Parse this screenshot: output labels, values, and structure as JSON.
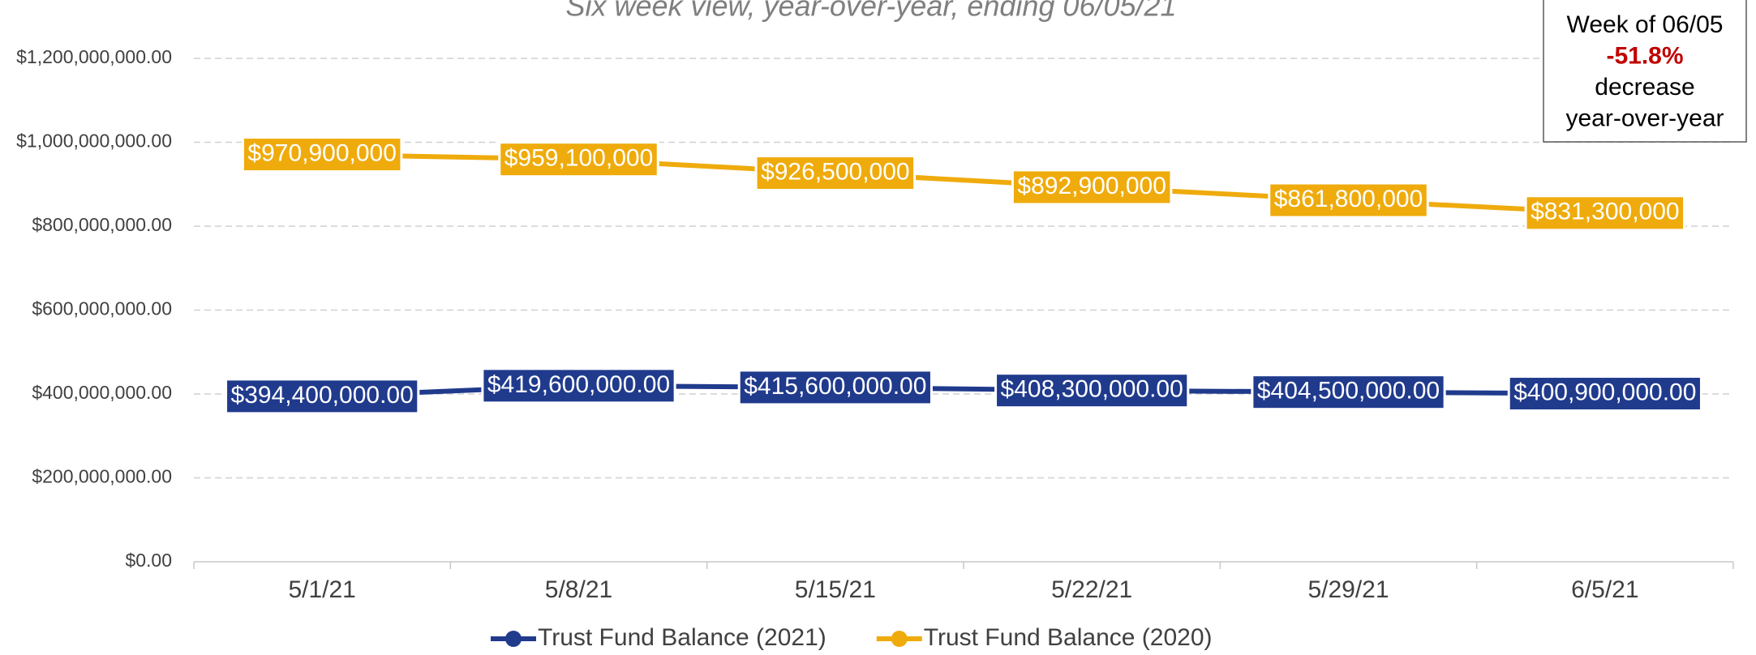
{
  "chart_data": {
    "type": "line",
    "title": "Six week view, year-over-year, ending 06/05/21",
    "categories": [
      "5/1/21",
      "5/8/21",
      "5/15/21",
      "5/22/21",
      "5/29/21",
      "6/5/21"
    ],
    "series": [
      {
        "name": "Trust Fund Balance (2021)",
        "color": "#203a8c",
        "values": [
          394400000,
          419600000,
          415600000,
          408300000,
          404500000,
          400900000
        ],
        "value_labels": [
          "$394,400,000.00",
          "$419,600,000.00",
          "$415,600,000.00",
          "$408,300,000.00",
          "$404,500,000.00",
          "$400,900,000.00"
        ]
      },
      {
        "name": "Trust Fund Balance (2020)",
        "color": "#efab0c",
        "values": [
          970900000,
          959100000,
          926500000,
          892900000,
          861800000,
          831300000
        ],
        "value_labels": [
          "$970,900,000",
          "$959,100,000",
          "$926,500,000",
          "$892,900,000",
          "$861,800,000",
          "$831,300,000"
        ]
      }
    ],
    "ylim": [
      0,
      1200000000
    ],
    "yticks": [
      {
        "value": 0,
        "label": "$0.00"
      },
      {
        "value": 200000000,
        "label": "$200,000,000.00"
      },
      {
        "value": 400000000,
        "label": "$400,000,000.00"
      },
      {
        "value": 600000000,
        "label": "$600,000,000.00"
      },
      {
        "value": 800000000,
        "label": "$800,000,000.00"
      },
      {
        "value": 1000000000,
        "label": "$1,000,000,000.00"
      },
      {
        "value": 1200000000,
        "label": "$1,200,000,000.00"
      }
    ],
    "grid": true,
    "legend": "bottom",
    "annotation": {
      "lines": [
        "Week of 06/05",
        "-51.8%",
        "decrease",
        "year-over-year"
      ],
      "highlight_color": "#c00000"
    }
  }
}
